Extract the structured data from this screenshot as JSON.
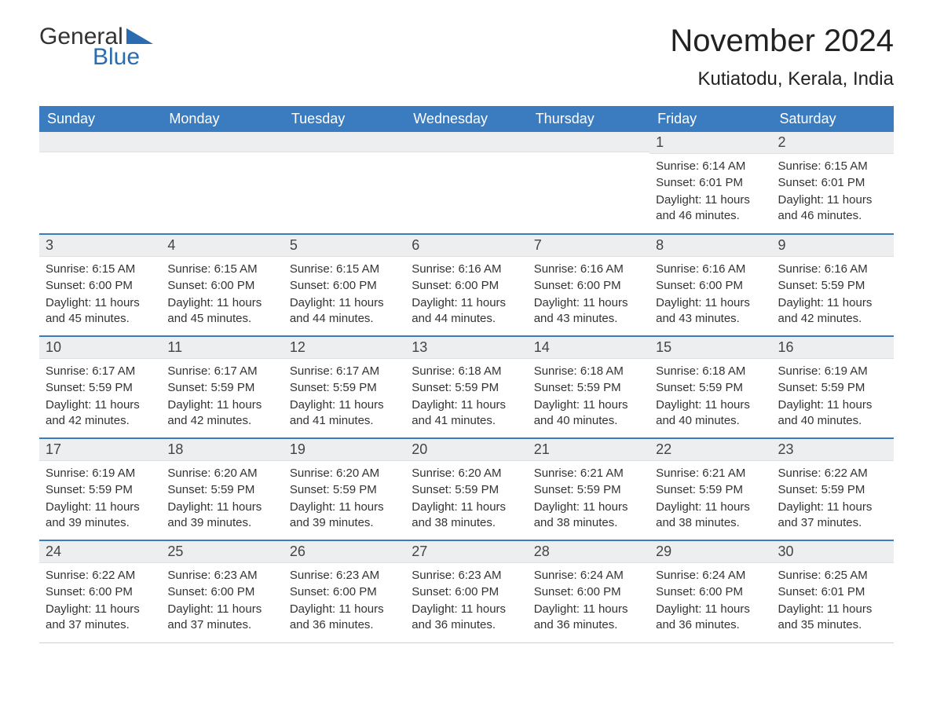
{
  "logo": {
    "word1": "General",
    "word2": "Blue"
  },
  "title": "November 2024",
  "location": "Kutiatodu, Kerala, India",
  "colors": {
    "header_bg": "#3b7bbf",
    "header_text": "#ffffff",
    "row_border": "#3b7bbf",
    "daynum_bg": "#eceeef",
    "text": "#333333",
    "logo_blue": "#2a6cb0"
  },
  "day_headers": [
    "Sunday",
    "Monday",
    "Tuesday",
    "Wednesday",
    "Thursday",
    "Friday",
    "Saturday"
  ],
  "weeks": [
    [
      {
        "day": "",
        "sunrise": "",
        "sunset": "",
        "daylight": ""
      },
      {
        "day": "",
        "sunrise": "",
        "sunset": "",
        "daylight": ""
      },
      {
        "day": "",
        "sunrise": "",
        "sunset": "",
        "daylight": ""
      },
      {
        "day": "",
        "sunrise": "",
        "sunset": "",
        "daylight": ""
      },
      {
        "day": "",
        "sunrise": "",
        "sunset": "",
        "daylight": ""
      },
      {
        "day": "1",
        "sunrise": "Sunrise: 6:14 AM",
        "sunset": "Sunset: 6:01 PM",
        "daylight": "Daylight: 11 hours and 46 minutes."
      },
      {
        "day": "2",
        "sunrise": "Sunrise: 6:15 AM",
        "sunset": "Sunset: 6:01 PM",
        "daylight": "Daylight: 11 hours and 46 minutes."
      }
    ],
    [
      {
        "day": "3",
        "sunrise": "Sunrise: 6:15 AM",
        "sunset": "Sunset: 6:00 PM",
        "daylight": "Daylight: 11 hours and 45 minutes."
      },
      {
        "day": "4",
        "sunrise": "Sunrise: 6:15 AM",
        "sunset": "Sunset: 6:00 PM",
        "daylight": "Daylight: 11 hours and 45 minutes."
      },
      {
        "day": "5",
        "sunrise": "Sunrise: 6:15 AM",
        "sunset": "Sunset: 6:00 PM",
        "daylight": "Daylight: 11 hours and 44 minutes."
      },
      {
        "day": "6",
        "sunrise": "Sunrise: 6:16 AM",
        "sunset": "Sunset: 6:00 PM",
        "daylight": "Daylight: 11 hours and 44 minutes."
      },
      {
        "day": "7",
        "sunrise": "Sunrise: 6:16 AM",
        "sunset": "Sunset: 6:00 PM",
        "daylight": "Daylight: 11 hours and 43 minutes."
      },
      {
        "day": "8",
        "sunrise": "Sunrise: 6:16 AM",
        "sunset": "Sunset: 6:00 PM",
        "daylight": "Daylight: 11 hours and 43 minutes."
      },
      {
        "day": "9",
        "sunrise": "Sunrise: 6:16 AM",
        "sunset": "Sunset: 5:59 PM",
        "daylight": "Daylight: 11 hours and 42 minutes."
      }
    ],
    [
      {
        "day": "10",
        "sunrise": "Sunrise: 6:17 AM",
        "sunset": "Sunset: 5:59 PM",
        "daylight": "Daylight: 11 hours and 42 minutes."
      },
      {
        "day": "11",
        "sunrise": "Sunrise: 6:17 AM",
        "sunset": "Sunset: 5:59 PM",
        "daylight": "Daylight: 11 hours and 42 minutes."
      },
      {
        "day": "12",
        "sunrise": "Sunrise: 6:17 AM",
        "sunset": "Sunset: 5:59 PM",
        "daylight": "Daylight: 11 hours and 41 minutes."
      },
      {
        "day": "13",
        "sunrise": "Sunrise: 6:18 AM",
        "sunset": "Sunset: 5:59 PM",
        "daylight": "Daylight: 11 hours and 41 minutes."
      },
      {
        "day": "14",
        "sunrise": "Sunrise: 6:18 AM",
        "sunset": "Sunset: 5:59 PM",
        "daylight": "Daylight: 11 hours and 40 minutes."
      },
      {
        "day": "15",
        "sunrise": "Sunrise: 6:18 AM",
        "sunset": "Sunset: 5:59 PM",
        "daylight": "Daylight: 11 hours and 40 minutes."
      },
      {
        "day": "16",
        "sunrise": "Sunrise: 6:19 AM",
        "sunset": "Sunset: 5:59 PM",
        "daylight": "Daylight: 11 hours and 40 minutes."
      }
    ],
    [
      {
        "day": "17",
        "sunrise": "Sunrise: 6:19 AM",
        "sunset": "Sunset: 5:59 PM",
        "daylight": "Daylight: 11 hours and 39 minutes."
      },
      {
        "day": "18",
        "sunrise": "Sunrise: 6:20 AM",
        "sunset": "Sunset: 5:59 PM",
        "daylight": "Daylight: 11 hours and 39 minutes."
      },
      {
        "day": "19",
        "sunrise": "Sunrise: 6:20 AM",
        "sunset": "Sunset: 5:59 PM",
        "daylight": "Daylight: 11 hours and 39 minutes."
      },
      {
        "day": "20",
        "sunrise": "Sunrise: 6:20 AM",
        "sunset": "Sunset: 5:59 PM",
        "daylight": "Daylight: 11 hours and 38 minutes."
      },
      {
        "day": "21",
        "sunrise": "Sunrise: 6:21 AM",
        "sunset": "Sunset: 5:59 PM",
        "daylight": "Daylight: 11 hours and 38 minutes."
      },
      {
        "day": "22",
        "sunrise": "Sunrise: 6:21 AM",
        "sunset": "Sunset: 5:59 PM",
        "daylight": "Daylight: 11 hours and 38 minutes."
      },
      {
        "day": "23",
        "sunrise": "Sunrise: 6:22 AM",
        "sunset": "Sunset: 5:59 PM",
        "daylight": "Daylight: 11 hours and 37 minutes."
      }
    ],
    [
      {
        "day": "24",
        "sunrise": "Sunrise: 6:22 AM",
        "sunset": "Sunset: 6:00 PM",
        "daylight": "Daylight: 11 hours and 37 minutes."
      },
      {
        "day": "25",
        "sunrise": "Sunrise: 6:23 AM",
        "sunset": "Sunset: 6:00 PM",
        "daylight": "Daylight: 11 hours and 37 minutes."
      },
      {
        "day": "26",
        "sunrise": "Sunrise: 6:23 AM",
        "sunset": "Sunset: 6:00 PM",
        "daylight": "Daylight: 11 hours and 36 minutes."
      },
      {
        "day": "27",
        "sunrise": "Sunrise: 6:23 AM",
        "sunset": "Sunset: 6:00 PM",
        "daylight": "Daylight: 11 hours and 36 minutes."
      },
      {
        "day": "28",
        "sunrise": "Sunrise: 6:24 AM",
        "sunset": "Sunset: 6:00 PM",
        "daylight": "Daylight: 11 hours and 36 minutes."
      },
      {
        "day": "29",
        "sunrise": "Sunrise: 6:24 AM",
        "sunset": "Sunset: 6:00 PM",
        "daylight": "Daylight: 11 hours and 36 minutes."
      },
      {
        "day": "30",
        "sunrise": "Sunrise: 6:25 AM",
        "sunset": "Sunset: 6:01 PM",
        "daylight": "Daylight: 11 hours and 35 minutes."
      }
    ]
  ]
}
